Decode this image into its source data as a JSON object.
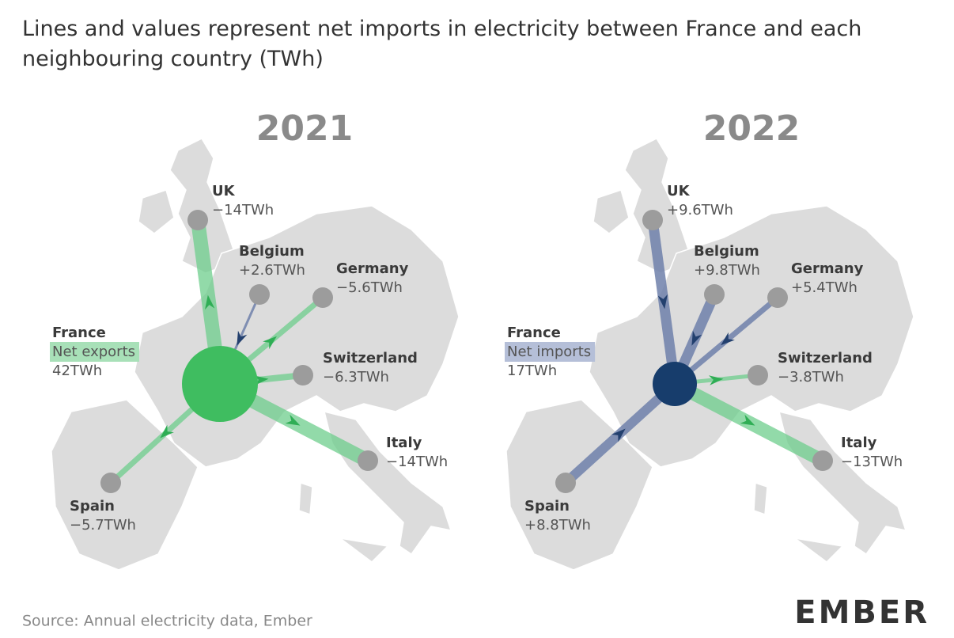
{
  "title": "Lines and values represent net imports in electricity between France and each neighbouring country (TWh)",
  "maps": [
    {
      "year": "2021",
      "france": {
        "name": "France",
        "status": "Net exports",
        "value": "42TWh"
      },
      "countries": [
        {
          "name": "UK",
          "value": "−14TWh"
        },
        {
          "name": "Belgium",
          "value": "+2.6TWh"
        },
        {
          "name": "Germany",
          "value": "−5.6TWh"
        },
        {
          "name": "Switzerland",
          "value": "−6.3TWh"
        },
        {
          "name": "Italy",
          "value": "−14TWh"
        },
        {
          "name": "Spain",
          "value": "−5.7TWh"
        }
      ]
    },
    {
      "year": "2022",
      "france": {
        "name": "France",
        "status": "Net imports",
        "value": "17TWh"
      },
      "countries": [
        {
          "name": "UK",
          "value": "+9.6TWh"
        },
        {
          "name": "Belgium",
          "value": "+9.8TWh"
        },
        {
          "name": "Germany",
          "value": "+5.4TWh"
        },
        {
          "name": "Switzerland",
          "value": "−3.8TWh"
        },
        {
          "name": "Italy",
          "value": "−13TWh"
        },
        {
          "name": "Spain",
          "value": "+8.8TWh"
        }
      ]
    }
  ],
  "source": "Source: Annual electricity data, Ember",
  "logo": "EMBER"
}
